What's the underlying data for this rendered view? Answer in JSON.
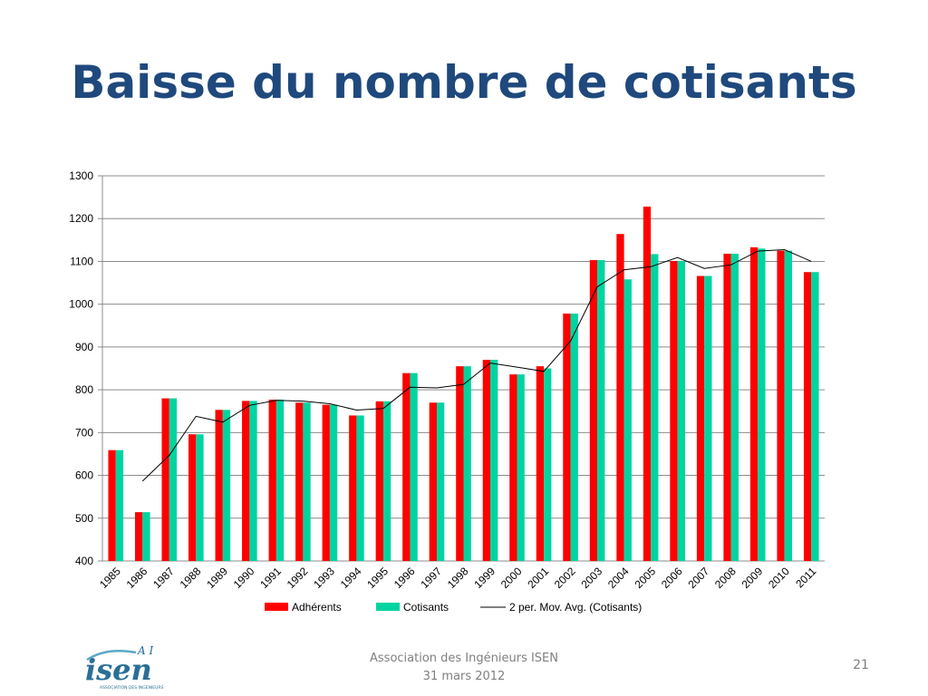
{
  "slide": {
    "title": "Baisse du nombre de cotisants",
    "footer_line1": "Association des Ingénieurs ISEN",
    "footer_line2": "31 mars 2012",
    "page_number": "21"
  },
  "logo": {
    "tag": "A I",
    "name": "isen",
    "subtitle": "ASSOCIATION DES INGENIEURS"
  },
  "colors": {
    "title": "#1f497d",
    "adherents": "#ff0000",
    "cotisants": "#00d4a0",
    "avg": "#000000",
    "grid": "#8c8c8c"
  },
  "chart_data": {
    "type": "bar",
    "categories": [
      "1985",
      "1986",
      "1987",
      "1988",
      "1989",
      "1990",
      "1991",
      "1992",
      "1993",
      "1994",
      "1995",
      "1996",
      "1997",
      "1998",
      "1999",
      "2000",
      "2001",
      "2002",
      "2003",
      "2004",
      "2005",
      "2006",
      "2007",
      "2008",
      "2009",
      "2010",
      "2011"
    ],
    "series": [
      {
        "name": "Adhérents",
        "values": [
          659,
          514,
          780,
          696,
          753,
          774,
          777,
          770,
          765,
          740,
          773,
          839,
          770,
          855,
          870,
          836,
          855,
          978,
          1103,
          1164,
          1228,
          1101,
          1066,
          1118,
          1133,
          1125,
          1075
        ]
      },
      {
        "name": "Cotisants",
        "values": [
          659,
          514,
          780,
          696,
          753,
          774,
          777,
          770,
          765,
          740,
          773,
          839,
          770,
          855,
          870,
          836,
          850,
          978,
          1103,
          1058,
          1117,
          1101,
          1066,
          1118,
          1130,
          1125,
          1075
        ]
      }
    ],
    "trendline": {
      "name": "2 per. Mov. Avg. (Cotisants)",
      "start_index": 1,
      "values": [
        586.5,
        647,
        738,
        724.5,
        763.5,
        775.5,
        773.5,
        767.5,
        752.5,
        756.5,
        806,
        804.5,
        812.5,
        862.5,
        853,
        843,
        914,
        1040.5,
        1080.5,
        1087.5,
        1109,
        1083.5,
        1092,
        1124,
        1127.5,
        1100
      ]
    },
    "yticks": [
      "400",
      "500",
      "600",
      "700",
      "800",
      "900",
      "1000",
      "1100",
      "1200",
      "1300"
    ],
    "ylim": [
      400,
      1300
    ],
    "legend_position": "bottom",
    "grid": true
  }
}
